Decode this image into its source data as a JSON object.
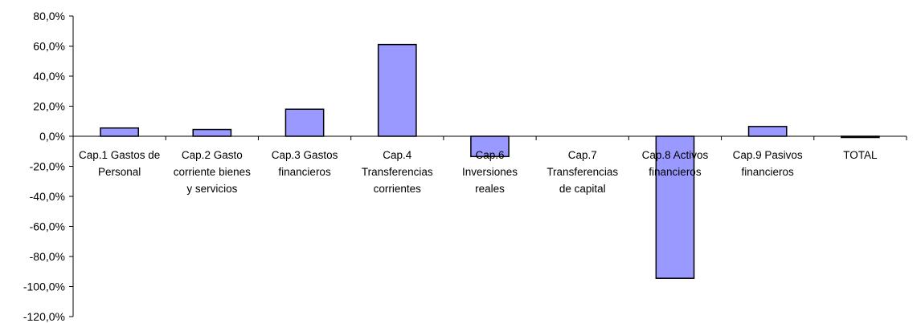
{
  "chart_data": {
    "type": "bar",
    "categories": [
      [
        "Cap.1 Gastos de",
        "Personal"
      ],
      [
        "Cap.2 Gasto",
        "corriente bienes",
        "y servicios"
      ],
      [
        "Cap.3 Gastos",
        "financieros"
      ],
      [
        "Cap.4",
        "Transferencias",
        "corrientes"
      ],
      [
        "Cap.6",
        "Inversiones",
        "reales"
      ],
      [
        "Cap.7",
        "Transferencias",
        "de capital"
      ],
      [
        "Cap.8  Activos",
        "financieros"
      ],
      [
        "Cap.9 Pasivos",
        "financieros"
      ],
      [
        "TOTAL"
      ]
    ],
    "values": [
      5.5,
      4.5,
      18.0,
      61.0,
      -13.5,
      0.0,
      -94.5,
      6.5,
      -0.5
    ],
    "ylim": [
      -120,
      80
    ],
    "yticks": [
      "80,0%",
      "60,0%",
      "40,0%",
      "20,0%",
      "0,0%",
      "-20,0%",
      "-40,0%",
      "-60,0%",
      "-80,0%",
      "-100,0%",
      "-120,0%"
    ],
    "ytick_values": [
      80,
      60,
      40,
      20,
      0,
      -20,
      -40,
      -60,
      -80,
      -100,
      -120
    ],
    "bar_color": "#9999ff",
    "bar_stroke": "#000000",
    "grid": false,
    "title": "",
    "xlabel": "",
    "ylabel": ""
  }
}
